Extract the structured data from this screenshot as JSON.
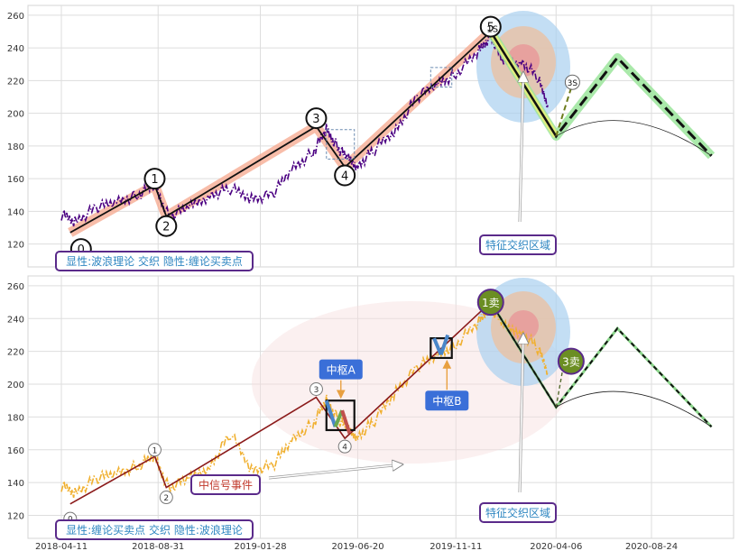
{
  "chart_data": [
    {
      "type": "line",
      "panel": "top",
      "ylim": [
        106,
        266
      ],
      "yticks": [
        120,
        140,
        160,
        180,
        200,
        220,
        240,
        260
      ],
      "grid": true,
      "background": "#ffffff",
      "series": [
        {
          "color": "#4b0082",
          "style": "dash-dot",
          "x": [
            "2018-04-11",
            "2018-05-01",
            "2018-06-01",
            "2018-07-01",
            "2018-08-01",
            "2018-08-26",
            "2018-09-15",
            "2018-10-15",
            "2018-11-15",
            "2018-12-15",
            "2019-01-15",
            "2019-02-15",
            "2019-03-15",
            "2019-04-15",
            "2019-05-05",
            "2019-05-20",
            "2019-06-05",
            "2019-06-20",
            "2019-07-15",
            "2019-08-15",
            "2019-09-15",
            "2019-10-15",
            "2019-11-11",
            "2019-12-15",
            "2020-01-01",
            "2020-01-20",
            "2020-02-15",
            "2020-03-10",
            "2020-03-25"
          ],
          "y": [
            138,
            134,
            142,
            146,
            150,
            156,
            137,
            142,
            150,
            154,
            148,
            150,
            166,
            176,
            190,
            180,
            172,
            168,
            178,
            190,
            210,
            218,
            224,
            238,
            248,
            230,
            232,
            222,
            205
          ]
        }
      ],
      "wave_points": [
        {
          "label": "0",
          "x": "2018-04-24",
          "y": 127
        },
        {
          "label": "1",
          "x": "2018-08-26",
          "y": 156
        },
        {
          "label": "2",
          "x": "2018-09-12",
          "y": 137
        },
        {
          "label": "3",
          "x": "2019-04-20",
          "y": 192
        },
        {
          "label": "4",
          "x": "2019-06-01",
          "y": 167
        },
        {
          "label": "5",
          "x": "2020-01-01",
          "y": 250
        }
      ],
      "projection": [
        {
          "x": "2020-01-01",
          "y": 250
        },
        {
          "x": "2020-04-06",
          "y": 186
        },
        {
          "x": "2020-07-05",
          "y": 234
        },
        {
          "x": "2020-11-20",
          "y": 174
        }
      ],
      "text_labels": [
        "0",
        "1",
        "2",
        "3",
        "4",
        "5",
        "1S",
        "3S"
      ],
      "legend_box": "显性:波浪理论 交织 隐性:缠论买卖点",
      "annotation": "特征交织区域"
    },
    {
      "type": "line",
      "panel": "bottom",
      "ylim": [
        106,
        266
      ],
      "yticks": [
        120,
        140,
        160,
        180,
        200,
        220,
        240,
        260
      ],
      "grid": true,
      "series": [
        {
          "color": "#f0b030",
          "style": "dash-dot",
          "x": [
            "2018-04-11",
            "2018-05-01",
            "2018-06-01",
            "2018-07-01",
            "2018-08-01",
            "2018-08-26",
            "2018-09-15",
            "2018-10-15",
            "2018-11-15",
            "2018-12-15",
            "2019-01-15",
            "2019-02-15",
            "2019-03-15",
            "2019-04-15",
            "2019-05-05",
            "2019-05-20",
            "2019-06-05",
            "2019-06-20",
            "2019-07-15",
            "2019-08-15",
            "2019-09-15",
            "2019-10-15",
            "2019-11-11",
            "2019-12-15",
            "2020-01-01",
            "2020-01-20",
            "2020-02-15",
            "2020-03-10",
            "2020-03-25"
          ],
          "y": [
            138,
            134,
            142,
            146,
            150,
            156,
            137,
            142,
            150,
            170,
            148,
            150,
            166,
            176,
            190,
            180,
            172,
            168,
            178,
            196,
            210,
            218,
            224,
            238,
            248,
            235,
            232,
            222,
            208
          ]
        }
      ],
      "wave_points": [
        {
          "label": "0",
          "x": "2018-04-24",
          "y": 127
        },
        {
          "label": "1",
          "x": "2018-08-26",
          "y": 156
        },
        {
          "label": "2",
          "x": "2018-09-12",
          "y": 137
        },
        {
          "label": "3",
          "x": "2019-04-20",
          "y": 192
        },
        {
          "label": "4",
          "x": "2019-06-01",
          "y": 167
        }
      ],
      "sell_points": [
        {
          "label": "1卖",
          "x": "2020-01-01",
          "y": 250
        },
        {
          "label": "3卖",
          "x": "2020-04-20",
          "y": 219
        }
      ],
      "pivots": [
        {
          "label": "中枢A",
          "x0": "2019-05-05",
          "x1": "2019-06-15",
          "y0": 172,
          "y1": 190
        },
        {
          "label": "中枢B",
          "x0": "2019-10-05",
          "x1": "2019-11-05",
          "y0": 216,
          "y1": 228
        }
      ],
      "xticks": [
        "2018-04-11",
        "2018-08-31",
        "2019-01-28",
        "2019-06-20",
        "2019-11-11",
        "2020-04-06",
        "2020-08-24"
      ],
      "legend_box": "显性:缠论买卖点 交织 隐性:波浪理论",
      "event_label": "中信号事件",
      "annotation": "特征交织区域"
    }
  ]
}
